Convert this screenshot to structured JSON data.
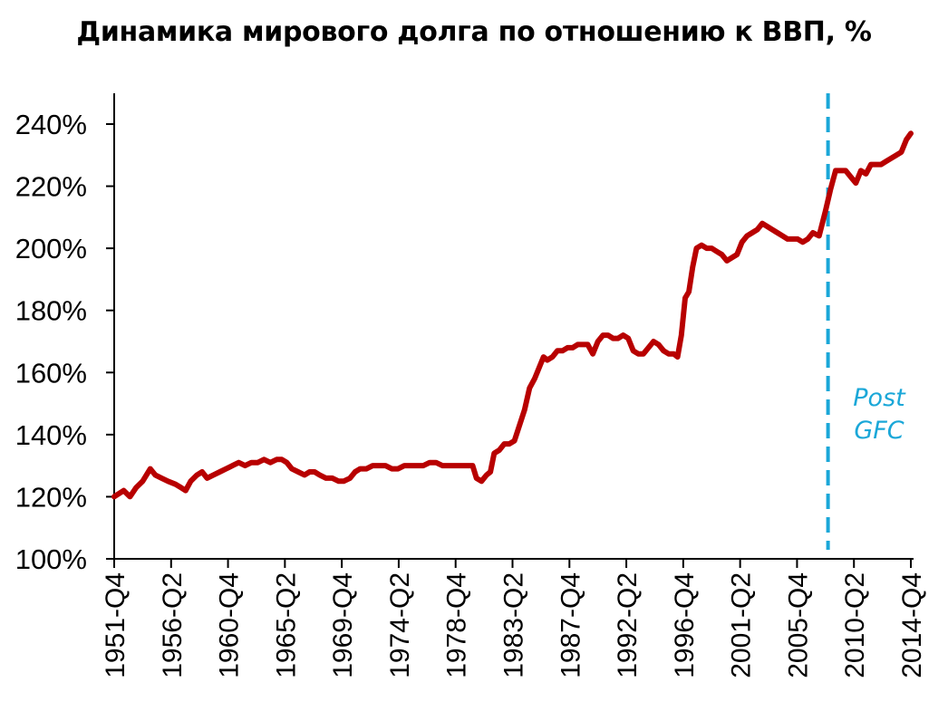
{
  "chart_data": {
    "type": "line",
    "title": "Динамика мирового долга по отношению к ВВП, %",
    "xlabel": "",
    "ylabel": "",
    "ylim": [
      100,
      240
    ],
    "y_ticks": [
      100,
      120,
      140,
      160,
      180,
      200,
      220,
      240
    ],
    "y_tick_labels": [
      "100%",
      "120%",
      "140%",
      "160%",
      "180%",
      "200%",
      "220%",
      "240%"
    ],
    "x_ticks": [
      1951.75,
      1956.25,
      1960.75,
      1965.25,
      1969.75,
      1974.25,
      1978.75,
      1983.25,
      1987.75,
      1992.25,
      1996.75,
      2001.25,
      2005.75,
      2010.25,
      2014.75
    ],
    "x_tick_labels": [
      "1951-Q4",
      "1956-Q2",
      "1960-Q4",
      "1965-Q2",
      "1969-Q4",
      "1974-Q2",
      "1978-Q4",
      "1983-Q2",
      "1987-Q4",
      "1992-Q2",
      "1996-Q4",
      "2001-Q2",
      "2005-Q4",
      "2010-Q2",
      "2014-Q4"
    ],
    "xlim": [
      1951.75,
      2014.75
    ],
    "grid": false,
    "legend": "none",
    "colors": {
      "line": "#b80000",
      "vline": "#1aa7d8",
      "axis": "#000000"
    },
    "series": [
      {
        "values": [
          [
            1951.75,
            120
          ],
          [
            1952.5,
            122
          ],
          [
            1953.0,
            120
          ],
          [
            1953.5,
            123
          ],
          [
            1954.0,
            125
          ],
          [
            1954.6,
            129
          ],
          [
            1955.0,
            127
          ],
          [
            1955.5,
            126
          ],
          [
            1956.0,
            125
          ],
          [
            1956.6,
            124
          ],
          [
            1957.0,
            123
          ],
          [
            1957.4,
            122
          ],
          [
            1957.8,
            125
          ],
          [
            1958.3,
            127
          ],
          [
            1958.7,
            128
          ],
          [
            1959.1,
            126
          ],
          [
            1959.6,
            127
          ],
          [
            1960.1,
            128
          ],
          [
            1960.6,
            129
          ],
          [
            1961.1,
            130
          ],
          [
            1961.6,
            131
          ],
          [
            1962.1,
            130
          ],
          [
            1962.6,
            131
          ],
          [
            1963.1,
            131
          ],
          [
            1963.6,
            132
          ],
          [
            1964.1,
            131
          ],
          [
            1964.6,
            132
          ],
          [
            1965.0,
            132
          ],
          [
            1965.4,
            131
          ],
          [
            1965.8,
            129
          ],
          [
            1966.3,
            128
          ],
          [
            1966.8,
            127
          ],
          [
            1967.2,
            128
          ],
          [
            1967.6,
            128
          ],
          [
            1968.0,
            127
          ],
          [
            1968.5,
            126
          ],
          [
            1969.0,
            126
          ],
          [
            1969.5,
            125
          ],
          [
            1969.9,
            125
          ],
          [
            1970.4,
            126
          ],
          [
            1970.8,
            128
          ],
          [
            1971.2,
            129
          ],
          [
            1971.7,
            129
          ],
          [
            1972.2,
            130
          ],
          [
            1972.7,
            130
          ],
          [
            1973.2,
            130
          ],
          [
            1973.7,
            129
          ],
          [
            1974.2,
            129
          ],
          [
            1974.7,
            130
          ],
          [
            1975.2,
            130
          ],
          [
            1975.7,
            130
          ],
          [
            1976.2,
            130
          ],
          [
            1976.7,
            131
          ],
          [
            1977.2,
            131
          ],
          [
            1977.7,
            130
          ],
          [
            1978.2,
            130
          ],
          [
            1978.7,
            130
          ],
          [
            1979.2,
            130
          ],
          [
            1979.7,
            130
          ],
          [
            1980.1,
            130
          ],
          [
            1980.4,
            126
          ],
          [
            1980.8,
            125
          ],
          [
            1981.2,
            127
          ],
          [
            1981.5,
            128
          ],
          [
            1981.8,
            134
          ],
          [
            1982.2,
            135
          ],
          [
            1982.6,
            137
          ],
          [
            1983.0,
            137
          ],
          [
            1983.4,
            138
          ],
          [
            1983.8,
            143
          ],
          [
            1984.2,
            148
          ],
          [
            1984.6,
            155
          ],
          [
            1985.0,
            158
          ],
          [
            1985.4,
            162
          ],
          [
            1985.7,
            165
          ],
          [
            1986.0,
            164
          ],
          [
            1986.4,
            165
          ],
          [
            1986.8,
            167
          ],
          [
            1987.2,
            167
          ],
          [
            1987.6,
            168
          ],
          [
            1988.0,
            168
          ],
          [
            1988.4,
            169
          ],
          [
            1988.8,
            169
          ],
          [
            1989.2,
            169
          ],
          [
            1989.6,
            166
          ],
          [
            1990.0,
            170
          ],
          [
            1990.4,
            172
          ],
          [
            1990.8,
            172
          ],
          [
            1991.2,
            171
          ],
          [
            1991.6,
            171
          ],
          [
            1992.0,
            172
          ],
          [
            1992.4,
            171
          ],
          [
            1992.8,
            167
          ],
          [
            1993.2,
            166
          ],
          [
            1993.6,
            166
          ],
          [
            1994.0,
            168
          ],
          [
            1994.4,
            170
          ],
          [
            1994.8,
            169
          ],
          [
            1995.2,
            167
          ],
          [
            1995.6,
            166
          ],
          [
            1996.0,
            166
          ],
          [
            1996.3,
            165
          ],
          [
            1996.6,
            172
          ],
          [
            1996.9,
            184
          ],
          [
            1997.2,
            186
          ],
          [
            1997.5,
            194
          ],
          [
            1997.8,
            200
          ],
          [
            1998.2,
            201
          ],
          [
            1998.6,
            200
          ],
          [
            1999.0,
            200
          ],
          [
            1999.4,
            199
          ],
          [
            1999.8,
            198
          ],
          [
            2000.2,
            196
          ],
          [
            2000.6,
            197
          ],
          [
            2001.0,
            198
          ],
          [
            2001.4,
            202
          ],
          [
            2001.8,
            204
          ],
          [
            2002.2,
            205
          ],
          [
            2002.6,
            206
          ],
          [
            2003.0,
            208
          ],
          [
            2003.4,
            207
          ],
          [
            2003.8,
            206
          ],
          [
            2004.2,
            205
          ],
          [
            2004.6,
            204
          ],
          [
            2005.0,
            203
          ],
          [
            2005.4,
            203
          ],
          [
            2005.8,
            203
          ],
          [
            2006.2,
            202
          ],
          [
            2006.6,
            203
          ],
          [
            2007.0,
            205
          ],
          [
            2007.5,
            204
          ],
          [
            2008.0,
            212
          ],
          [
            2008.4,
            219
          ],
          [
            2008.8,
            225
          ],
          [
            2009.2,
            225
          ],
          [
            2009.6,
            225
          ],
          [
            2010.0,
            223
          ],
          [
            2010.4,
            221
          ],
          [
            2010.8,
            225
          ],
          [
            2011.2,
            224
          ],
          [
            2011.6,
            227
          ],
          [
            2012.0,
            227
          ],
          [
            2012.4,
            227
          ],
          [
            2012.8,
            228
          ],
          [
            2013.2,
            229
          ],
          [
            2013.6,
            230
          ],
          [
            2014.0,
            231
          ],
          [
            2014.4,
            235
          ],
          [
            2014.75,
            237
          ]
        ]
      }
    ],
    "vline": {
      "x": 2008.2,
      "label_lines": [
        "Post",
        "GFC"
      ]
    }
  }
}
